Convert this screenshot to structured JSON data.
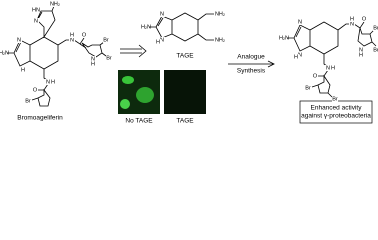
{
  "bromoageliferin": {
    "name": "Bromoageliferin",
    "atoms": [
      "NH₂",
      "HN",
      "N",
      "H₂N",
      "N",
      "H",
      "O",
      "N",
      "H",
      "Br",
      "Br",
      "N",
      "H",
      "O",
      "N",
      "H",
      "Br"
    ]
  },
  "tage": {
    "name": "TAGE",
    "atoms": [
      "H₂N",
      "N",
      "N",
      "H",
      "NH₂",
      "NH₂"
    ]
  },
  "images": {
    "left_label": "No TAGE",
    "right_label": "TAGE"
  },
  "arrow": {
    "above": "Analogue",
    "below": "Synthesis"
  },
  "product": {
    "atoms": [
      "H₂N",
      "N",
      "N",
      "H",
      "O",
      "N",
      "H",
      "Br",
      "Br",
      "N",
      "H",
      "O",
      "N",
      "H",
      "Br",
      "Br"
    ],
    "box": [
      "Enhanced activity",
      "against γ-proteobacteria"
    ]
  }
}
